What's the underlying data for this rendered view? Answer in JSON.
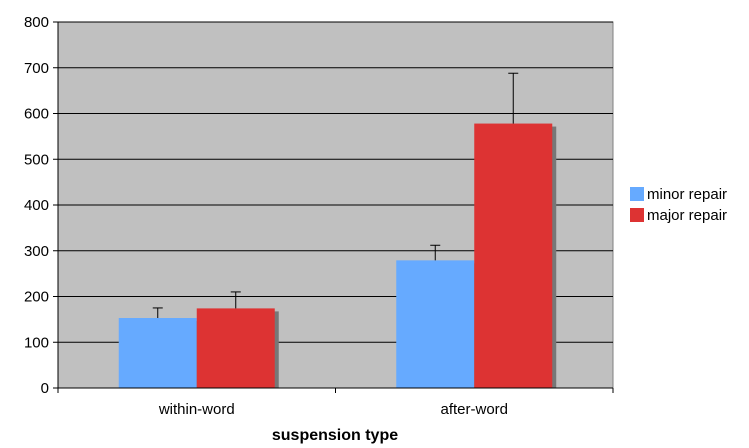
{
  "chart_data": {
    "type": "bar",
    "title": "",
    "xlabel": "suspension type",
    "ylabel": "",
    "ylim": [
      0,
      800
    ],
    "yticks": [
      0,
      100,
      200,
      300,
      400,
      500,
      600,
      700,
      800
    ],
    "ytick_labels": [
      "0",
      "100",
      "200",
      "300",
      "400",
      "500",
      "600",
      "700",
      "800"
    ],
    "grid": true,
    "legend_position": "right",
    "plot_background": "#c0c0c0",
    "categories": [
      "within-word",
      "after-word"
    ],
    "series": [
      {
        "name": "minor repair",
        "color": "#66aaff",
        "values": [
          153,
          279
        ],
        "errors": [
          22,
          33
        ]
      },
      {
        "name": "major repair",
        "color": "#dd3333",
        "values": [
          174,
          578
        ],
        "errors": [
          36,
          110
        ]
      }
    ]
  }
}
